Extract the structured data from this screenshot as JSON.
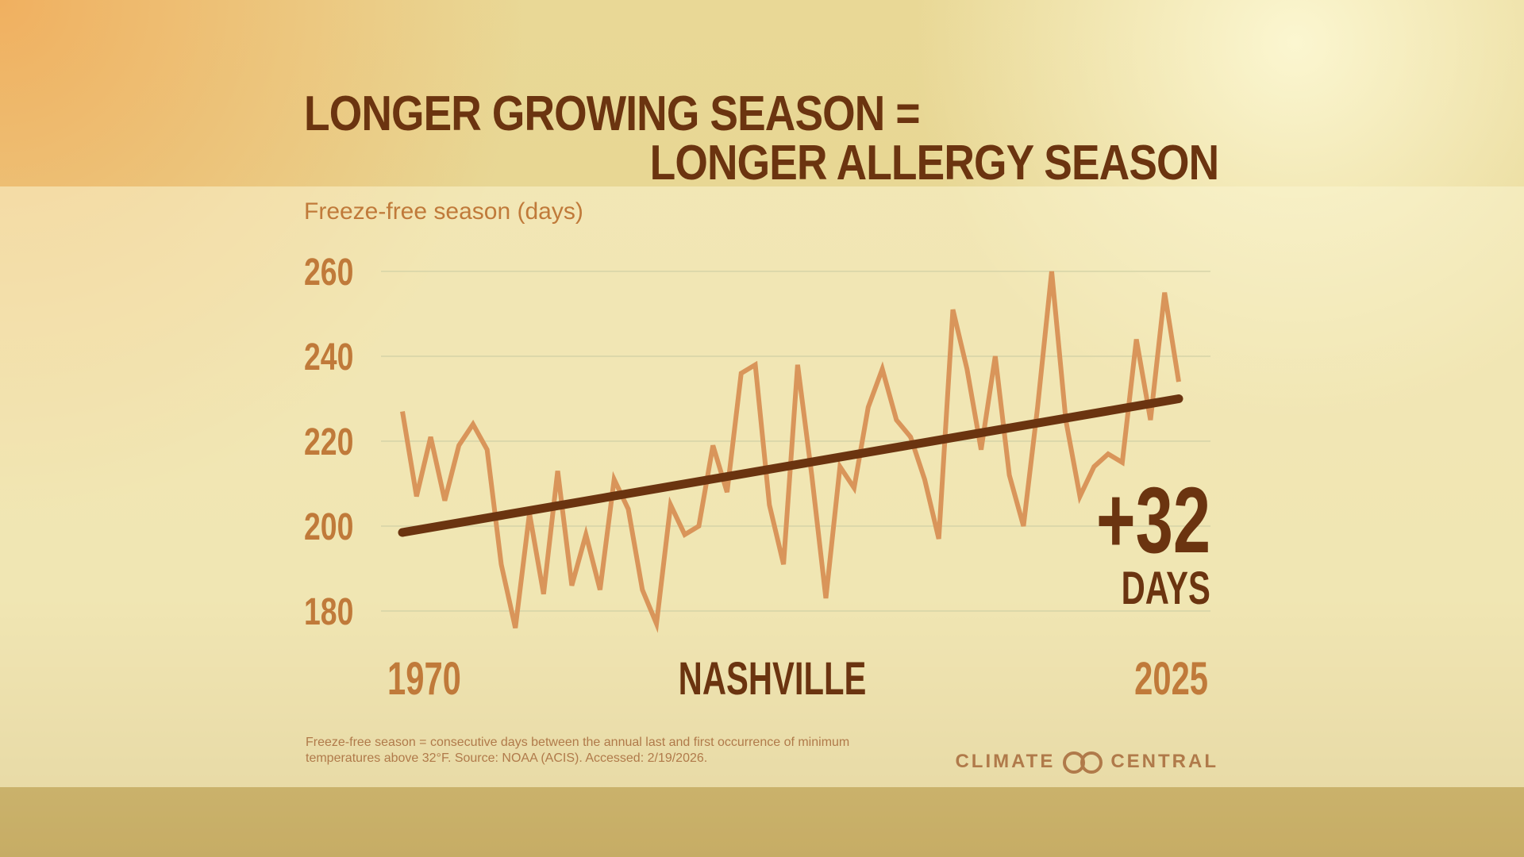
{
  "title_line1": "LONGER GROWING SEASON =",
  "title_line2": "LONGER ALLERGY SEASON",
  "chart_data": {
    "type": "line",
    "ylabel": "Freeze-free season (days)",
    "yticks": [
      "260",
      "240",
      "220",
      "200",
      "180"
    ],
    "ylim": [
      180,
      260
    ],
    "xlim": [
      1970,
      2025
    ],
    "x_labels": [
      "1970",
      "2025"
    ],
    "location": "NASHVILLE",
    "grid": true,
    "series": [
      {
        "color": "#d9955a",
        "x_start": 1970,
        "values": [
          227,
          207,
          221,
          206,
          219,
          224,
          218,
          191,
          176,
          203,
          184,
          213,
          186,
          198,
          185,
          211,
          204,
          185,
          177,
          205,
          198,
          200,
          219,
          208,
          236,
          238,
          205,
          191,
          238,
          212,
          183,
          214,
          209,
          228,
          237,
          225,
          221,
          211,
          197,
          251,
          237,
          218,
          240,
          212,
          200,
          228,
          260,
          225,
          207,
          214,
          217,
          215,
          244,
          225,
          255,
          234
        ]
      },
      {
        "type": "trend",
        "color": "#6b3410",
        "x": [
          1970,
          2025
        ],
        "values": [
          198.5,
          230
        ]
      }
    ],
    "annotation_value": "+32",
    "annotation_unit": "DAYS"
  },
  "footnote_line1": "Freeze-free season = consecutive days between the annual last and first occurrence of minimum",
  "footnote_line2": "temperatures above 32°F. Source: NOAA (ACIS). Accessed: 2/19/2026.",
  "logo_left": "CLIMATE",
  "logo_right": "CENTRAL"
}
